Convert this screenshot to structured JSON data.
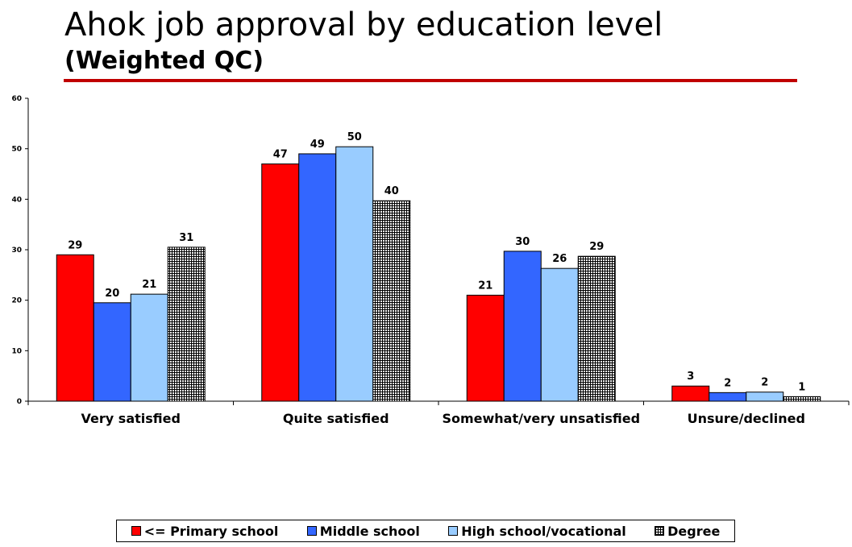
{
  "header": {
    "title": "Ahok job approval by education level",
    "subtitle": "(Weighted QC)",
    "rule_color": "#c00000"
  },
  "chart_data": {
    "type": "bar",
    "categories": [
      "Very satisfied",
      "Quite satisfied",
      "Somewhat/very unsatisfied",
      "Unsure/declined"
    ],
    "series": [
      {
        "name": "<= Primary school",
        "color": "#ff0000",
        "pattern": "solid",
        "values": [
          29,
          47,
          21,
          3
        ],
        "labels": [
          "29",
          "47",
          "21",
          "3"
        ]
      },
      {
        "name": "Middle school",
        "color": "#3366ff",
        "pattern": "solid",
        "values": [
          19.5,
          49,
          29.7,
          1.7
        ],
        "labels": [
          "20",
          "49",
          "30",
          "2"
        ]
      },
      {
        "name": "High school/vocational",
        "color": "#99ccff",
        "pattern": "solid",
        "values": [
          21.2,
          50.4,
          26.3,
          1.8
        ],
        "labels": [
          "21",
          "50",
          "26",
          "2"
        ]
      },
      {
        "name": "Degree",
        "color": "#000000",
        "pattern": "grid",
        "values": [
          30.5,
          39.7,
          28.7,
          0.9
        ],
        "labels": [
          "31",
          "40",
          "29",
          "1"
        ]
      }
    ],
    "ylim": [
      0,
      60
    ],
    "yticks": [
      0,
      10,
      20,
      30,
      40,
      50,
      60
    ],
    "xlabel": "",
    "ylabel": "",
    "grid": false,
    "legend_position": "bottom"
  }
}
